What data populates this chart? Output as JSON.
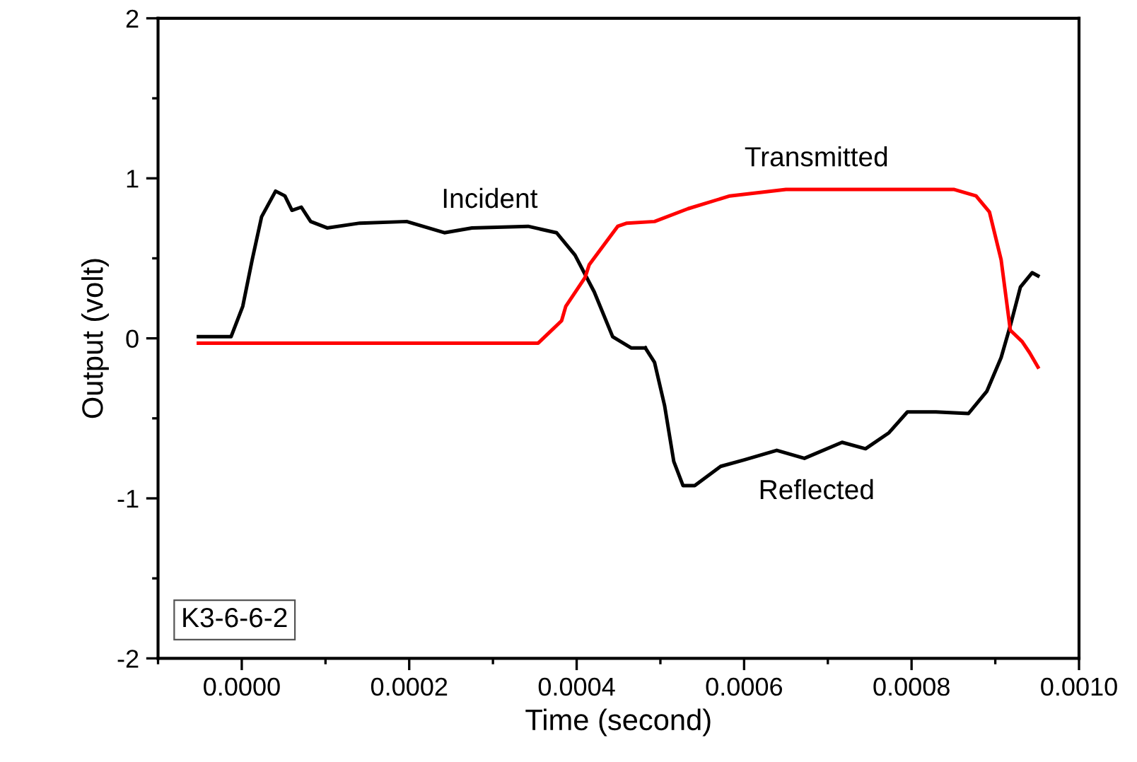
{
  "chart_data": {
    "type": "line",
    "xlabel": "Time (second)",
    "ylabel": "Output (volt)",
    "xlim": [
      -0.0001,
      0.001
    ],
    "xticks": [
      {
        "value": 0,
        "label": "0.0000"
      },
      {
        "value": 0.0002,
        "label": "0.0002"
      },
      {
        "value": 0.0004,
        "label": "0.0004"
      },
      {
        "value": 0.0006,
        "label": "0.0006"
      },
      {
        "value": 0.0008,
        "label": "0.0008"
      },
      {
        "value": 0.001,
        "label": "0.0010"
      }
    ],
    "ylim": [
      -2,
      2
    ],
    "yticks": [
      -2,
      -1,
      0,
      1,
      2
    ],
    "grid": false,
    "series": [
      {
        "name": "Incident",
        "color": "#000000",
        "x": [
          -5.18e-05,
          -1.28e-05,
          1.2e-06,
          1.24e-05,
          2.37e-05,
          4.04e-05,
          5.15e-05,
          6e-05,
          7.11e-05,
          8.23e-05,
          0.000102,
          0.000141,
          0.000197,
          0.000242,
          0.000275,
          0.000342,
          0.000376,
          0.000398,
          0.000421,
          0.000443,
          0.000465,
          0.000482
        ],
        "values": [
          0.01,
          0.01,
          0.2,
          0.49,
          0.76,
          0.92,
          0.89,
          0.8,
          0.82,
          0.73,
          0.69,
          0.72,
          0.73,
          0.66,
          0.69,
          0.7,
          0.66,
          0.52,
          0.29,
          0.01,
          -0.06,
          -0.06
        ]
      },
      {
        "name": "Reflected",
        "color": "#000000",
        "x": [
          0.000482,
          0.000493,
          0.000505,
          0.000516,
          0.000527,
          0.000541,
          0.000572,
          0.0006,
          0.000639,
          0.000672,
          0.000717,
          0.000745,
          0.000773,
          0.000795,
          0.000829,
          0.000868,
          0.00089,
          0.000907,
          0.000918,
          0.00093,
          0.000944,
          0.000951
        ],
        "values": [
          -0.06,
          -0.15,
          -0.42,
          -0.77,
          -0.92,
          -0.92,
          -0.8,
          -0.76,
          -0.7,
          -0.75,
          -0.65,
          -0.69,
          -0.59,
          -0.46,
          -0.46,
          -0.47,
          -0.33,
          -0.12,
          0.08,
          0.32,
          0.41,
          0.39
        ]
      },
      {
        "name": "Transmitted",
        "color": "#ff0000",
        "x": [
          -5.18e-05,
          0.000354,
          0.000368,
          0.000382,
          0.000387,
          0.00041,
          0.000415,
          0.000449,
          0.00046,
          0.000493,
          0.000533,
          0.000583,
          0.00065,
          0.000739,
          0.000851,
          0.000877,
          0.000893,
          0.000907,
          0.000918,
          0.000932,
          0.000941,
          0.000951
        ],
        "values": [
          -0.03,
          -0.03,
          0.04,
          0.11,
          0.2,
          0.38,
          0.46,
          0.7,
          0.72,
          0.73,
          0.81,
          0.89,
          0.93,
          0.93,
          0.93,
          0.89,
          0.79,
          0.49,
          0.05,
          -0.02,
          -0.09,
          -0.18
        ]
      }
    ],
    "annotations": [
      "K3-6-6-2"
    ]
  }
}
